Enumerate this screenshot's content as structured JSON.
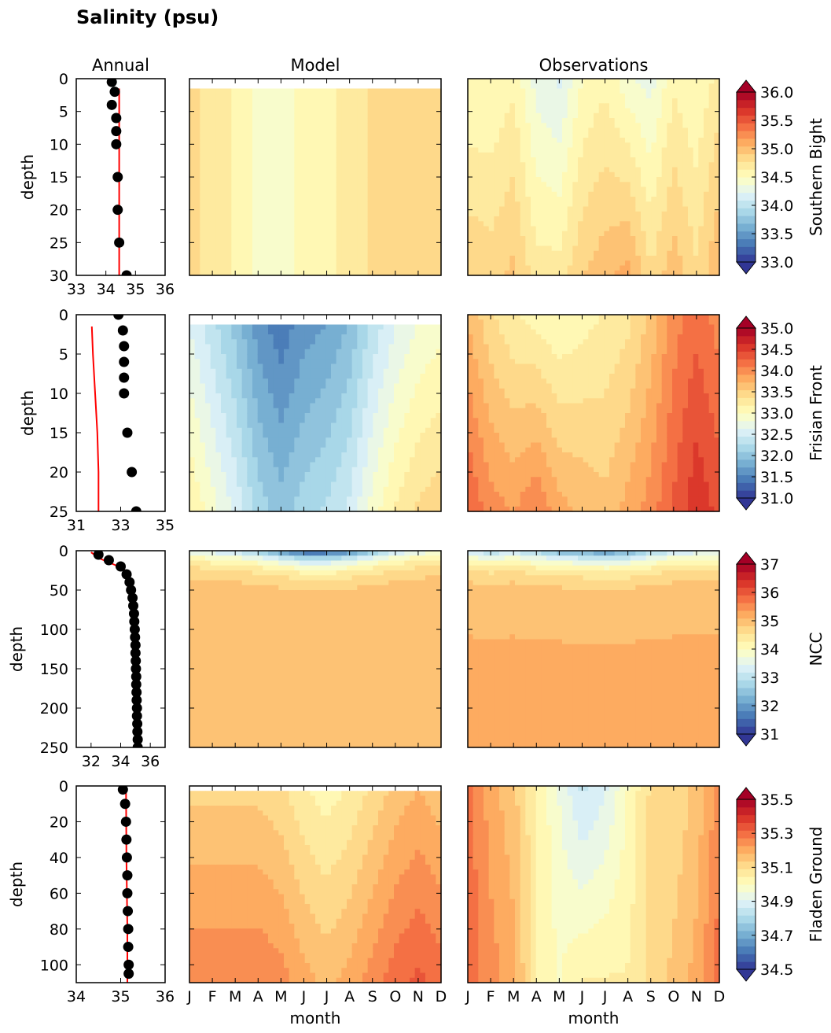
{
  "figure": {
    "title": "Salinity (psu)",
    "column_titles": [
      "Annual",
      "Model",
      "Observations"
    ],
    "x_label_month": "month",
    "y_label_depth": "depth",
    "months": [
      "J",
      "F",
      "M",
      "A",
      "M",
      "J",
      "J",
      "A",
      "S",
      "O",
      "N",
      "D"
    ]
  },
  "colormap": {
    "name": "RdYlBu_r",
    "stops": [
      "#313695",
      "#4575b4",
      "#74add1",
      "#abd9e9",
      "#e0f3f8",
      "#ffffbf",
      "#fee090",
      "#fdae61",
      "#f46d43",
      "#d73027",
      "#a50026"
    ]
  },
  "colors": {
    "observed_dots": "#000000",
    "model_line": "#ff0000"
  },
  "chart_data": [
    {
      "type": "contour-panel-row",
      "region": "Southern Bight",
      "depth_range": [
        0,
        30
      ],
      "depth_ticks": [
        0,
        5,
        10,
        15,
        20,
        25,
        30
      ],
      "annual": {
        "x_range": [
          33,
          36
        ],
        "x_ticks": [
          33,
          34,
          35,
          36
        ],
        "observed_points": [
          [
            34.2,
            0.5
          ],
          [
            34.3,
            2
          ],
          [
            34.2,
            4
          ],
          [
            34.35,
            6
          ],
          [
            34.35,
            8
          ],
          [
            34.35,
            10
          ],
          [
            34.4,
            15
          ],
          [
            34.4,
            20
          ],
          [
            34.45,
            25
          ],
          [
            34.7,
            30
          ]
        ],
        "model_line": [
          [
            34.45,
            1.5
          ],
          [
            34.45,
            10
          ],
          [
            34.45,
            20
          ],
          [
            34.45,
            30
          ]
        ]
      },
      "colorbar": {
        "range": [
          33.0,
          36.0
        ],
        "ticks": [
          "33.0",
          "33.5",
          "34.0",
          "34.5",
          "35.0",
          "35.5",
          "36.0"
        ]
      },
      "model_monthly": [
        34.8,
        34.75,
        34.6,
        34.45,
        34.45,
        34.55,
        34.6,
        34.7,
        34.8,
        34.85,
        34.9,
        34.9
      ],
      "model_top_depth": 1.5,
      "observations_surface": [
        34.5,
        34.5,
        34.6,
        34.3,
        34.2,
        34.5,
        34.6,
        34.4,
        34.3,
        34.6,
        34.5,
        34.7
      ],
      "observations_bottom": [
        34.9,
        34.85,
        34.95,
        34.7,
        34.7,
        34.9,
        35.0,
        35.1,
        34.8,
        35.0,
        34.8,
        35.05
      ]
    },
    {
      "type": "contour-panel-row",
      "region": "Frisian Front",
      "depth_range": [
        0,
        25
      ],
      "depth_ticks": [
        0,
        5,
        10,
        15,
        20,
        25
      ],
      "annual": {
        "x_range": [
          31,
          35
        ],
        "x_ticks": [
          31,
          33,
          35
        ],
        "observed_points": [
          [
            32.9,
            0
          ],
          [
            33.1,
            2
          ],
          [
            33.15,
            4
          ],
          [
            33.15,
            6
          ],
          [
            33.15,
            8
          ],
          [
            33.15,
            10
          ],
          [
            33.3,
            15
          ],
          [
            33.5,
            20
          ],
          [
            33.7,
            25
          ]
        ],
        "model_line": [
          [
            31.7,
            1.5
          ],
          [
            31.75,
            5
          ],
          [
            31.85,
            10
          ],
          [
            31.95,
            15
          ],
          [
            32.0,
            20
          ],
          [
            32.0,
            25
          ]
        ]
      },
      "colorbar": {
        "range": [
          31.0,
          35.0
        ],
        "ticks": [
          "31.0",
          "31.5",
          "32.0",
          "32.5",
          "33.0",
          "33.5",
          "34.0",
          "34.5",
          "35.0"
        ]
      },
      "model_monthly": [
        32.6,
        32.3,
        32.0,
        31.6,
        31.4,
        31.6,
        31.7,
        31.9,
        32.3,
        32.6,
        32.8,
        32.9
      ],
      "model_top_depth": 1.5,
      "observations_surface": [
        33.7,
        33.4,
        33.2,
        33.1,
        33.0,
        33.1,
        33.2,
        33.3,
        33.6,
        34.0,
        34.2,
        34.0
      ],
      "observations_bottom": [
        34.3,
        34.0,
        33.9,
        34.1,
        33.8,
        33.7,
        33.6,
        33.8,
        34.0,
        34.3,
        34.6,
        34.4
      ]
    },
    {
      "type": "contour-panel-row",
      "region": "NCC",
      "depth_range": [
        0,
        250
      ],
      "depth_ticks": [
        0,
        50,
        100,
        150,
        200,
        250
      ],
      "annual": {
        "x_range": [
          31,
          37
        ],
        "x_ticks": [
          32,
          34,
          36
        ],
        "x_ticks_shown": [
          32,
          34,
          36
        ],
        "observed_points": [
          [
            32.5,
            5
          ],
          [
            33.2,
            12
          ],
          [
            34.0,
            20
          ],
          [
            34.4,
            30
          ],
          [
            34.6,
            40
          ],
          [
            34.7,
            50
          ],
          [
            34.8,
            60
          ],
          [
            34.85,
            70
          ],
          [
            34.9,
            80
          ],
          [
            34.92,
            90
          ],
          [
            34.95,
            100
          ],
          [
            34.97,
            110
          ],
          [
            35.0,
            120
          ],
          [
            35.0,
            130
          ],
          [
            35.02,
            140
          ],
          [
            35.03,
            150
          ],
          [
            35.05,
            160
          ],
          [
            35.05,
            170
          ],
          [
            35.07,
            180
          ],
          [
            35.08,
            190
          ],
          [
            35.1,
            200
          ],
          [
            35.1,
            210
          ],
          [
            35.12,
            220
          ],
          [
            35.13,
            230
          ],
          [
            35.15,
            240
          ],
          [
            35.15,
            250
          ]
        ],
        "model_line": [
          [
            32.0,
            2
          ],
          [
            32.6,
            10
          ],
          [
            33.6,
            18
          ],
          [
            34.3,
            25
          ],
          [
            34.6,
            35
          ],
          [
            34.8,
            50
          ],
          [
            34.95,
            80
          ],
          [
            35.0,
            120
          ],
          [
            35.05,
            180
          ],
          [
            35.1,
            250
          ]
        ]
      },
      "colorbar": {
        "range": [
          31,
          37
        ],
        "ticks": [
          "31",
          "32",
          "33",
          "34",
          "35",
          "36",
          "37"
        ]
      },
      "model_surface": [
        33.5,
        33.2,
        33.0,
        32.5,
        31.8,
        31.2,
        31.2,
        31.6,
        32.4,
        33.0,
        33.4,
        33.6
      ],
      "model_deep": 35.05,
      "observations_surface": [
        33.0,
        32.8,
        33.0,
        32.6,
        32.2,
        32.0,
        31.8,
        32.0,
        32.6,
        33.0,
        33.2,
        33.2
      ],
      "observations_deep": 35.1
    },
    {
      "type": "contour-panel-row",
      "region": "Fladen Ground",
      "depth_range": [
        0,
        110
      ],
      "depth_ticks": [
        0,
        20,
        40,
        60,
        80,
        100
      ],
      "annual": {
        "x_range": [
          34,
          36
        ],
        "x_ticks": [
          34,
          35,
          36
        ],
        "observed_points": [
          [
            35.05,
            2
          ],
          [
            35.1,
            10
          ],
          [
            35.12,
            20
          ],
          [
            35.13,
            30
          ],
          [
            35.14,
            40
          ],
          [
            35.15,
            50
          ],
          [
            35.15,
            60
          ],
          [
            35.16,
            70
          ],
          [
            35.17,
            80
          ],
          [
            35.17,
            90
          ],
          [
            35.18,
            100
          ],
          [
            35.18,
            105
          ]
        ],
        "model_line": [
          [
            35.12,
            2
          ],
          [
            35.13,
            40
          ],
          [
            35.15,
            80
          ],
          [
            35.15,
            110
          ]
        ]
      },
      "colorbar": {
        "range": [
          34.5,
          35.5
        ],
        "ticks": [
          "34.5",
          "34.7",
          "34.9",
          "35.1",
          "35.3",
          "35.5"
        ]
      },
      "model_monthly": [
        35.12,
        35.12,
        35.12,
        35.12,
        35.1,
        35.05,
        35.02,
        35.05,
        35.1,
        35.15,
        35.18,
        35.15
      ],
      "model_top_depth": 1.5,
      "observations_surface": [
        35.3,
        35.2,
        35.15,
        35.05,
        34.95,
        34.85,
        34.9,
        35.0,
        35.1,
        35.1,
        35.15,
        35.25
      ],
      "observations_bottom": [
        35.3,
        35.25,
        35.2,
        35.05,
        35.0,
        35.05,
        35.05,
        35.05,
        35.1,
        35.15,
        35.2,
        35.3
      ]
    }
  ]
}
